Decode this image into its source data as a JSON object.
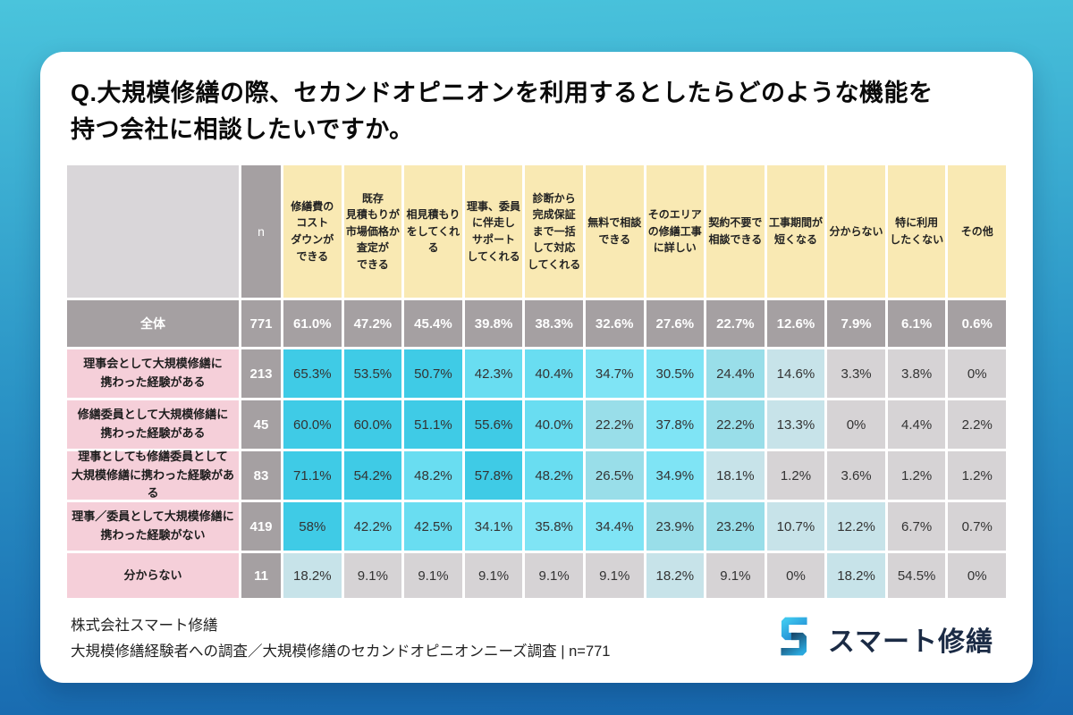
{
  "chart_data": {
    "type": "table",
    "title": "Q.大規模修繕の際、セカンドオピニオンを利用するとしたらどのような機能を\n持つ会社に相談したいですか。",
    "n_label": "n",
    "columns": [
      "修繕費の\nコスト\nダウンが\nできる",
      "既存\n見積もりが\n市場価格か\n査定が\nできる",
      "相見積もり\nをしてくれ\nる",
      "理事、委員\nに伴走し\nサポート\nしてくれる",
      "診断から\n完成保証\nまで一括\nして対応\nしてくれる",
      "無料で相談\nできる",
      "そのエリア\nの修繕工事\nに詳しい",
      "契約不要で\n相談できる",
      "工事期間が\n短くなる",
      "分からない",
      "特に利用\nしたくない",
      "その他"
    ],
    "total_row": {
      "label": "全体",
      "n": 771,
      "values": [
        "61.0%",
        "47.2%",
        "45.4%",
        "39.8%",
        "38.3%",
        "32.6%",
        "27.6%",
        "22.7%",
        "12.6%",
        "7.9%",
        "6.1%",
        "0.6%"
      ]
    },
    "rows": [
      {
        "label": "理事会として大規模修繕に\n携わった経験がある",
        "n": 213,
        "values": [
          "65.3%",
          "53.5%",
          "50.7%",
          "42.3%",
          "40.4%",
          "34.7%",
          "30.5%",
          "24.4%",
          "14.6%",
          "3.3%",
          "3.8%",
          "0%"
        ]
      },
      {
        "label": "修繕委員として大規模修繕に\n携わった経験がある",
        "n": 45,
        "values": [
          "60.0%",
          "60.0%",
          "51.1%",
          "55.6%",
          "40.0%",
          "22.2%",
          "37.8%",
          "22.2%",
          "13.3%",
          "0%",
          "4.4%",
          "2.2%"
        ]
      },
      {
        "label": "理事としても修繕委員として\n大規模修繕に携わった経験がある",
        "n": 83,
        "values": [
          "71.1%",
          "54.2%",
          "48.2%",
          "57.8%",
          "48.2%",
          "26.5%",
          "34.9%",
          "18.1%",
          "1.2%",
          "3.6%",
          "1.2%",
          "1.2%"
        ]
      },
      {
        "label": "理事／委員として大規模修繕に\n携わった経験がない",
        "n": 419,
        "values": [
          "58%",
          "42.2%",
          "42.5%",
          "34.1%",
          "35.8%",
          "34.4%",
          "23.9%",
          "23.2%",
          "10.7%",
          "12.2%",
          "6.7%",
          "0.7%"
        ]
      },
      {
        "label": "分からない",
        "n": 11,
        "values": [
          "18.2%",
          "9.1%",
          "9.1%",
          "9.1%",
          "9.1%",
          "9.1%",
          "18.2%",
          "9.1%",
          "0%",
          "18.2%",
          "54.5%",
          "0%"
        ]
      }
    ],
    "legend_position": "none",
    "grid": "white 3px separators"
  },
  "heatmap": {
    "excluded_columns": [
      10,
      11
    ],
    "neutral": "#D6D3D5",
    "bands": [
      {
        "min": 50,
        "color": "#3FCBE6"
      },
      {
        "min": 40,
        "color": "#69DDF1"
      },
      {
        "min": 30,
        "color": "#7FE4F5"
      },
      {
        "min": 20,
        "color": "#99DEE9"
      },
      {
        "min": 10,
        "color": "#C7E3E9"
      },
      {
        "min": 0,
        "color": "#D6D3D5"
      }
    ]
  },
  "footer": {
    "company": "株式会社スマート修繕",
    "survey": "大規模修繕経験者への調査／大規模修繕のセカンドオピニオンニーズ調査 | n=771",
    "logo_text": "スマート修繕"
  },
  "colors": {
    "background_top": "#4AC4DC",
    "background_bottom": "#1767AE",
    "card": "#FFFFFF",
    "header_yellow": "#F9E9B3",
    "header_gray": "#A5A0A2",
    "row_pink": "#F5CFD9",
    "corner": "#D9D6D9",
    "logo_navy": "#1B2B45",
    "strong_cyan": "#3FCBE6"
  }
}
